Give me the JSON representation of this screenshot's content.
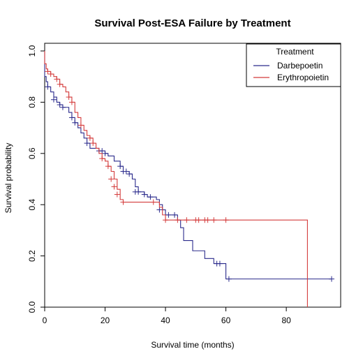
{
  "chart_data": {
    "type": "line",
    "title": "Survival Post-ESA Failure by Treatment",
    "xlabel": "Survival time (months)",
    "ylabel": "Survival probability",
    "xlim": [
      0,
      98
    ],
    "ylim": [
      0,
      1.03
    ],
    "x_ticks": [
      "0",
      "20",
      "40",
      "60",
      "80"
    ],
    "y_ticks": [
      "0.0",
      "0.2",
      "0.4",
      "0.6",
      "0.8",
      "1.0"
    ],
    "legend": {
      "title": "Treatment",
      "position": "top-right"
    },
    "series": [
      {
        "name": "Darbepoetin",
        "color": "#2b2b8c",
        "steps": [
          [
            0,
            1.0
          ],
          [
            0,
            0.9
          ],
          [
            0.5,
            0.88
          ],
          [
            1,
            0.86
          ],
          [
            2,
            0.84
          ],
          [
            3,
            0.82
          ],
          [
            4,
            0.8
          ],
          [
            5,
            0.79
          ],
          [
            6,
            0.78
          ],
          [
            8,
            0.76
          ],
          [
            9,
            0.74
          ],
          [
            10,
            0.72
          ],
          [
            11,
            0.7
          ],
          [
            12,
            0.68
          ],
          [
            13,
            0.66
          ],
          [
            14,
            0.64
          ],
          [
            15,
            0.62
          ],
          [
            18,
            0.61
          ],
          [
            20,
            0.6
          ],
          [
            21,
            0.59
          ],
          [
            23,
            0.57
          ],
          [
            25,
            0.55
          ],
          [
            26,
            0.53
          ],
          [
            28,
            0.52
          ],
          [
            29,
            0.5
          ],
          [
            30,
            0.47
          ],
          [
            31,
            0.45
          ],
          [
            33,
            0.44
          ],
          [
            34,
            0.43
          ],
          [
            37,
            0.42
          ],
          [
            38,
            0.4
          ],
          [
            39,
            0.38
          ],
          [
            40,
            0.36
          ],
          [
            44,
            0.34
          ],
          [
            45,
            0.31
          ],
          [
            46,
            0.26
          ],
          [
            49,
            0.22
          ],
          [
            53,
            0.19
          ],
          [
            56,
            0.17
          ],
          [
            60,
            0.11
          ],
          [
            95,
            0.11
          ]
        ],
        "censored": [
          [
            1,
            0.86
          ],
          [
            3,
            0.81
          ],
          [
            5,
            0.79
          ],
          [
            6,
            0.78
          ],
          [
            9,
            0.74
          ],
          [
            10,
            0.72
          ],
          [
            14,
            0.64
          ],
          [
            18,
            0.61
          ],
          [
            19,
            0.61
          ],
          [
            20,
            0.6
          ],
          [
            25,
            0.55
          ],
          [
            26,
            0.53
          ],
          [
            27,
            0.53
          ],
          [
            28,
            0.52
          ],
          [
            30,
            0.45
          ],
          [
            31,
            0.45
          ],
          [
            33,
            0.44
          ],
          [
            35,
            0.43
          ],
          [
            38,
            0.38
          ],
          [
            41,
            0.36
          ],
          [
            43,
            0.36
          ],
          [
            57,
            0.17
          ],
          [
            58,
            0.17
          ],
          [
            61,
            0.11
          ],
          [
            95,
            0.11
          ]
        ]
      },
      {
        "name": "Erythropoietin",
        "color": "#d43b3b",
        "steps": [
          [
            0,
            1.0
          ],
          [
            0,
            0.95
          ],
          [
            0.5,
            0.93
          ],
          [
            1,
            0.92
          ],
          [
            2,
            0.91
          ],
          [
            3,
            0.9
          ],
          [
            4,
            0.89
          ],
          [
            5,
            0.87
          ],
          [
            6,
            0.86
          ],
          [
            7,
            0.84
          ],
          [
            8,
            0.82
          ],
          [
            9,
            0.8
          ],
          [
            10,
            0.76
          ],
          [
            11,
            0.74
          ],
          [
            12,
            0.71
          ],
          [
            13,
            0.69
          ],
          [
            14,
            0.67
          ],
          [
            15,
            0.66
          ],
          [
            16,
            0.64
          ],
          [
            17,
            0.62
          ],
          [
            18,
            0.6
          ],
          [
            19,
            0.58
          ],
          [
            20,
            0.57
          ],
          [
            21,
            0.55
          ],
          [
            22,
            0.53
          ],
          [
            23,
            0.5
          ],
          [
            24,
            0.46
          ],
          [
            25,
            0.42
          ],
          [
            26,
            0.41
          ],
          [
            38,
            0.39
          ],
          [
            39,
            0.36
          ],
          [
            40,
            0.34
          ],
          [
            87,
            0.34
          ],
          [
            87,
            0.0
          ]
        ],
        "censored": [
          [
            1,
            0.92
          ],
          [
            2,
            0.91
          ],
          [
            4,
            0.89
          ],
          [
            5,
            0.87
          ],
          [
            8,
            0.82
          ],
          [
            9,
            0.8
          ],
          [
            12,
            0.71
          ],
          [
            15,
            0.66
          ],
          [
            16,
            0.64
          ],
          [
            19,
            0.58
          ],
          [
            21,
            0.55
          ],
          [
            22,
            0.5
          ],
          [
            23,
            0.47
          ],
          [
            24,
            0.44
          ],
          [
            26,
            0.41
          ],
          [
            36,
            0.41
          ],
          [
            40,
            0.34
          ],
          [
            44,
            0.34
          ],
          [
            47,
            0.34
          ],
          [
            50,
            0.34
          ],
          [
            51,
            0.34
          ],
          [
            53,
            0.34
          ],
          [
            54,
            0.34
          ],
          [
            56,
            0.34
          ],
          [
            60,
            0.34
          ]
        ]
      }
    ]
  }
}
